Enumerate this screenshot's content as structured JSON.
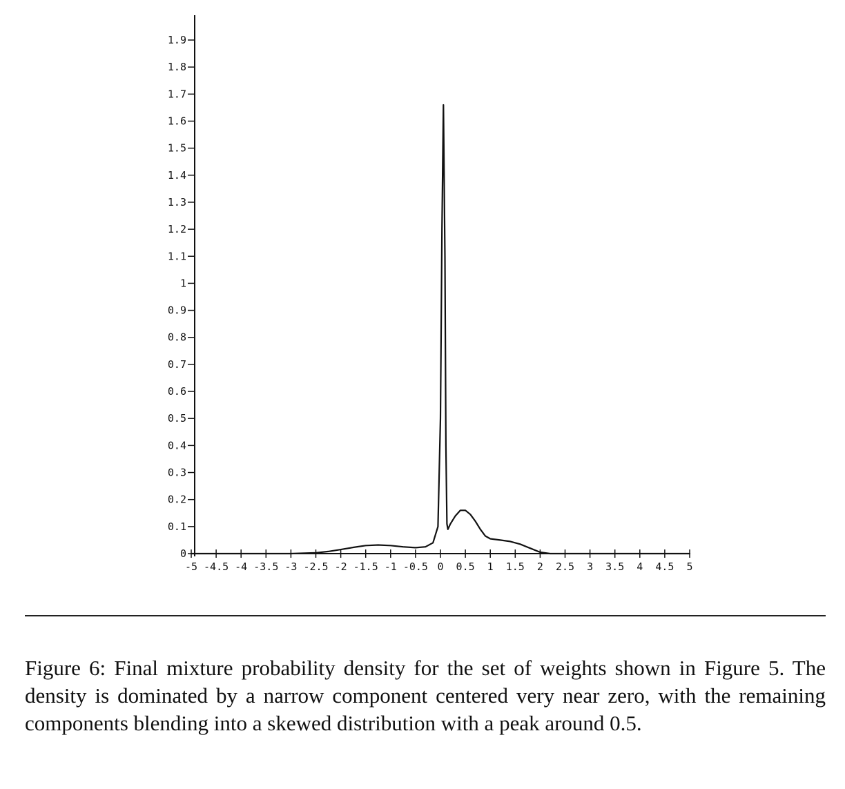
{
  "chart_data": {
    "type": "line",
    "title": "",
    "xlabel": "",
    "ylabel": "",
    "xlim": [
      -5,
      5
    ],
    "ylim": [
      0,
      1.9
    ],
    "grid": false,
    "legend": "none",
    "x_tick_labels": [
      "-5",
      "-4.5",
      "-4",
      "-3.5",
      "-3",
      "-2.5",
      "-2",
      "-1.5",
      "-1",
      "-0.5",
      "0",
      "0.5",
      "1",
      "1.5",
      "2",
      "2.5",
      "3",
      "3.5",
      "4",
      "4.5",
      "5"
    ],
    "y_tick_labels": [
      "0",
      "0.1",
      "0.2",
      "0.3",
      "0.4",
      "0.5",
      "0.6",
      "0.7",
      "0.8",
      "0.9",
      "1",
      "1.1",
      "1.2",
      "1.3",
      "1.4",
      "1.5",
      "1.6",
      "1.7",
      "1.8",
      "1.9"
    ],
    "series": [
      {
        "color": "#111111",
        "points": [
          [
            -5,
            0
          ],
          [
            -3,
            0
          ],
          [
            -2.5,
            0.003
          ],
          [
            -2.25,
            0.008
          ],
          [
            -2,
            0.015
          ],
          [
            -1.75,
            0.023
          ],
          [
            -1.5,
            0.03
          ],
          [
            -1.25,
            0.032
          ],
          [
            -1,
            0.03
          ],
          [
            -0.75,
            0.025
          ],
          [
            -0.5,
            0.022
          ],
          [
            -0.3,
            0.025
          ],
          [
            -0.15,
            0.04
          ],
          [
            -0.05,
            0.1
          ],
          [
            0,
            0.5
          ],
          [
            0.03,
            1.2
          ],
          [
            0.06,
            1.66
          ],
          [
            0.09,
            1.1
          ],
          [
            0.11,
            0.4
          ],
          [
            0.13,
            0.11
          ],
          [
            0.15,
            0.09
          ],
          [
            0.2,
            0.11
          ],
          [
            0.3,
            0.14
          ],
          [
            0.4,
            0.16
          ],
          [
            0.5,
            0.16
          ],
          [
            0.6,
            0.145
          ],
          [
            0.7,
            0.12
          ],
          [
            0.8,
            0.09
          ],
          [
            0.9,
            0.065
          ],
          [
            1.0,
            0.055
          ],
          [
            1.2,
            0.05
          ],
          [
            1.4,
            0.045
          ],
          [
            1.6,
            0.035
          ],
          [
            1.8,
            0.02
          ],
          [
            2.0,
            0.005
          ],
          [
            2.2,
            0
          ],
          [
            5,
            0
          ]
        ]
      }
    ]
  },
  "caption": {
    "text": "Figure 6: Final mixture probability density for the set of weights shown in Figure 5. The density is dominated by a narrow component centered very near zero, with the remaining components blending into a skewed distribution with a peak around 0.5."
  }
}
